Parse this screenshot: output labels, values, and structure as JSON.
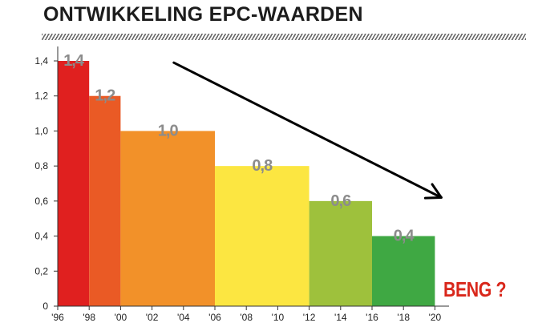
{
  "title": "ONTWIKKELING EPC-WAARDEN",
  "annotation": "BENG ?",
  "chart_data": {
    "type": "bar",
    "title": "ONTWIKKELING EPC-WAARDEN",
    "xlabel": "",
    "ylabel": "",
    "ylim": [
      0,
      1.5
    ],
    "yticks": [
      "0",
      "0,2",
      "0,4",
      "0,6",
      "0,8",
      "1,0",
      "1,2",
      "1,4"
    ],
    "xticks": [
      "'96",
      "'98",
      "'00",
      "'02",
      "'04",
      "'06",
      "'08",
      "'10",
      "'12",
      "'14",
      "'16",
      "'18",
      "'20"
    ],
    "grid": false,
    "legend": "none",
    "bars": [
      {
        "from": "'96",
        "to": "'98",
        "value": 1.4,
        "label": "1,4",
        "color": "#e0201f"
      },
      {
        "from": "'98",
        "to": "'00",
        "value": 1.2,
        "label": "1,2",
        "color": "#ea5a25"
      },
      {
        "from": "'00",
        "to": "'06",
        "value": 1.0,
        "label": "1,0",
        "color": "#f29129"
      },
      {
        "from": "'06",
        "to": "'12",
        "value": 0.8,
        "label": "0,8",
        "color": "#fce641"
      },
      {
        "from": "'12",
        "to": "'16",
        "value": 0.6,
        "label": "0,6",
        "color": "#9ec13c"
      },
      {
        "from": "'16",
        "to": "'20",
        "value": 0.4,
        "label": "0,4",
        "color": "#3fa843"
      }
    ],
    "trend_arrow": {
      "from": {
        "x": "'04",
        "y": 1.39
      },
      "to": {
        "x": "'20",
        "y": 0.62
      }
    },
    "colors": {
      "axis": "#333333",
      "value_label": "#8c8c8c",
      "arrow": "#000000",
      "annotation": "#d9271b"
    }
  }
}
